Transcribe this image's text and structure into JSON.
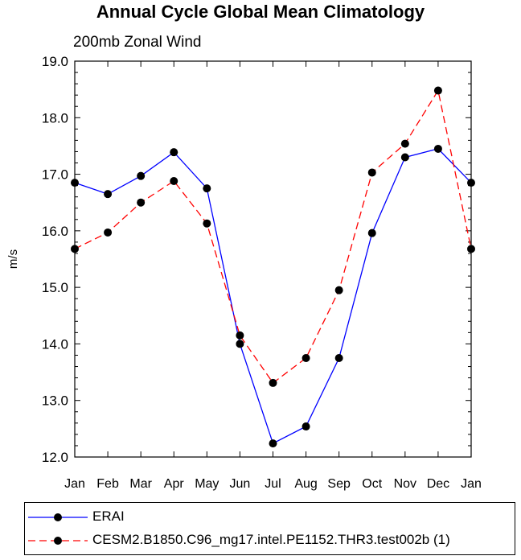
{
  "chart_data": {
    "type": "line",
    "title": "Annual Cycle Global Mean Climatology",
    "subtitle": "200mb Zonal Wind",
    "xlabel": "",
    "ylabel": "m/s",
    "categories": [
      "Jan",
      "Feb",
      "Mar",
      "Apr",
      "May",
      "Jun",
      "Jul",
      "Aug",
      "Sep",
      "Oct",
      "Nov",
      "Dec",
      "Jan"
    ],
    "ylim": [
      12.0,
      19.0
    ],
    "yticks": [
      "12.0",
      "13.0",
      "14.0",
      "15.0",
      "16.0",
      "17.0",
      "18.0",
      "19.0"
    ],
    "series": [
      {
        "name": "ERAI",
        "color": "#0000ff",
        "dash": "solid",
        "values": [
          16.85,
          16.65,
          16.97,
          17.39,
          16.75,
          14.0,
          12.24,
          12.54,
          13.75,
          15.96,
          17.3,
          17.45,
          16.85
        ]
      },
      {
        "name": "CESM2.B1850.C96_mg17.intel.PE1152.THR3.test002b (1)",
        "color": "#ff0000",
        "dash": "dashed",
        "values": [
          15.68,
          15.97,
          16.5,
          16.88,
          16.13,
          14.15,
          13.31,
          13.75,
          14.95,
          17.03,
          17.54,
          18.48,
          15.68
        ]
      }
    ],
    "marker_color": "#000000"
  }
}
